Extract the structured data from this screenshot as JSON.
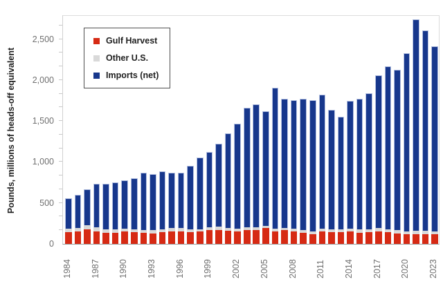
{
  "chart_data": {
    "type": "bar",
    "stacked": true,
    "title": "",
    "ylabel": "Pounds, millions of heads-off equivalent",
    "xlabel": "",
    "legend_position": "top-left-inside",
    "grid": false,
    "ylim": [
      0,
      2800
    ],
    "yticks": [
      0,
      500,
      1000,
      1500,
      2000,
      2500
    ],
    "ytick_labels": [
      "0",
      "500",
      "1,000",
      "1,500",
      "2,000",
      "2,500"
    ],
    "minor_tick_step": 166.67,
    "xtick_label_every": 3,
    "categories": [
      1984,
      1985,
      1986,
      1987,
      1988,
      1989,
      1990,
      1991,
      1992,
      1993,
      1994,
      1995,
      1996,
      1997,
      1998,
      1999,
      2000,
      2001,
      2002,
      2003,
      2004,
      2005,
      2006,
      2007,
      2008,
      2009,
      2010,
      2011,
      2012,
      2013,
      2014,
      2015,
      2016,
      2017,
      2018,
      2019,
      2020,
      2021,
      2022,
      2023
    ],
    "series": [
      {
        "name": "Gulf Harvest",
        "color": "#d62a14",
        "values": [
          140,
          150,
          180,
          155,
          135,
          135,
          150,
          140,
          135,
          130,
          140,
          150,
          155,
          140,
          150,
          165,
          170,
          160,
          150,
          165,
          165,
          190,
          150,
          165,
          155,
          135,
          120,
          150,
          140,
          140,
          150,
          135,
          140,
          150,
          140,
          130,
          120,
          120,
          120,
          115
        ]
      },
      {
        "name": "Other U.S.",
        "color": "#d9d9d9",
        "values": [
          45,
          40,
          45,
          50,
          45,
          40,
          35,
          35,
          35,
          35,
          40,
          40,
          35,
          35,
          30,
          35,
          45,
          35,
          35,
          35,
          35,
          30,
          35,
          30,
          30,
          35,
          35,
          35,
          35,
          35,
          35,
          45,
          40,
          40,
          40,
          40,
          35,
          40,
          40,
          40
        ]
      },
      {
        "name": "Imports (net)",
        "color": "#17378c",
        "values": [
          370,
          410,
          445,
          530,
          550,
          580,
          590,
          625,
          695,
          690,
          710,
          680,
          680,
          780,
          875,
          925,
          1010,
          1155,
          1285,
          1460,
          1500,
          1400,
          1725,
          1580,
          1570,
          1605,
          1600,
          1640,
          1465,
          1380,
          1560,
          1590,
          1660,
          1870,
          1985,
          1955,
          2175,
          2585,
          2445,
          2260
        ]
      }
    ]
  },
  "colors": {
    "axis_text": "#6f6f6f",
    "title_text": "#1f1f1f",
    "axis_line": "#9b9b9b",
    "plot_border": "#dcdcdc",
    "background": "#ffffff"
  }
}
